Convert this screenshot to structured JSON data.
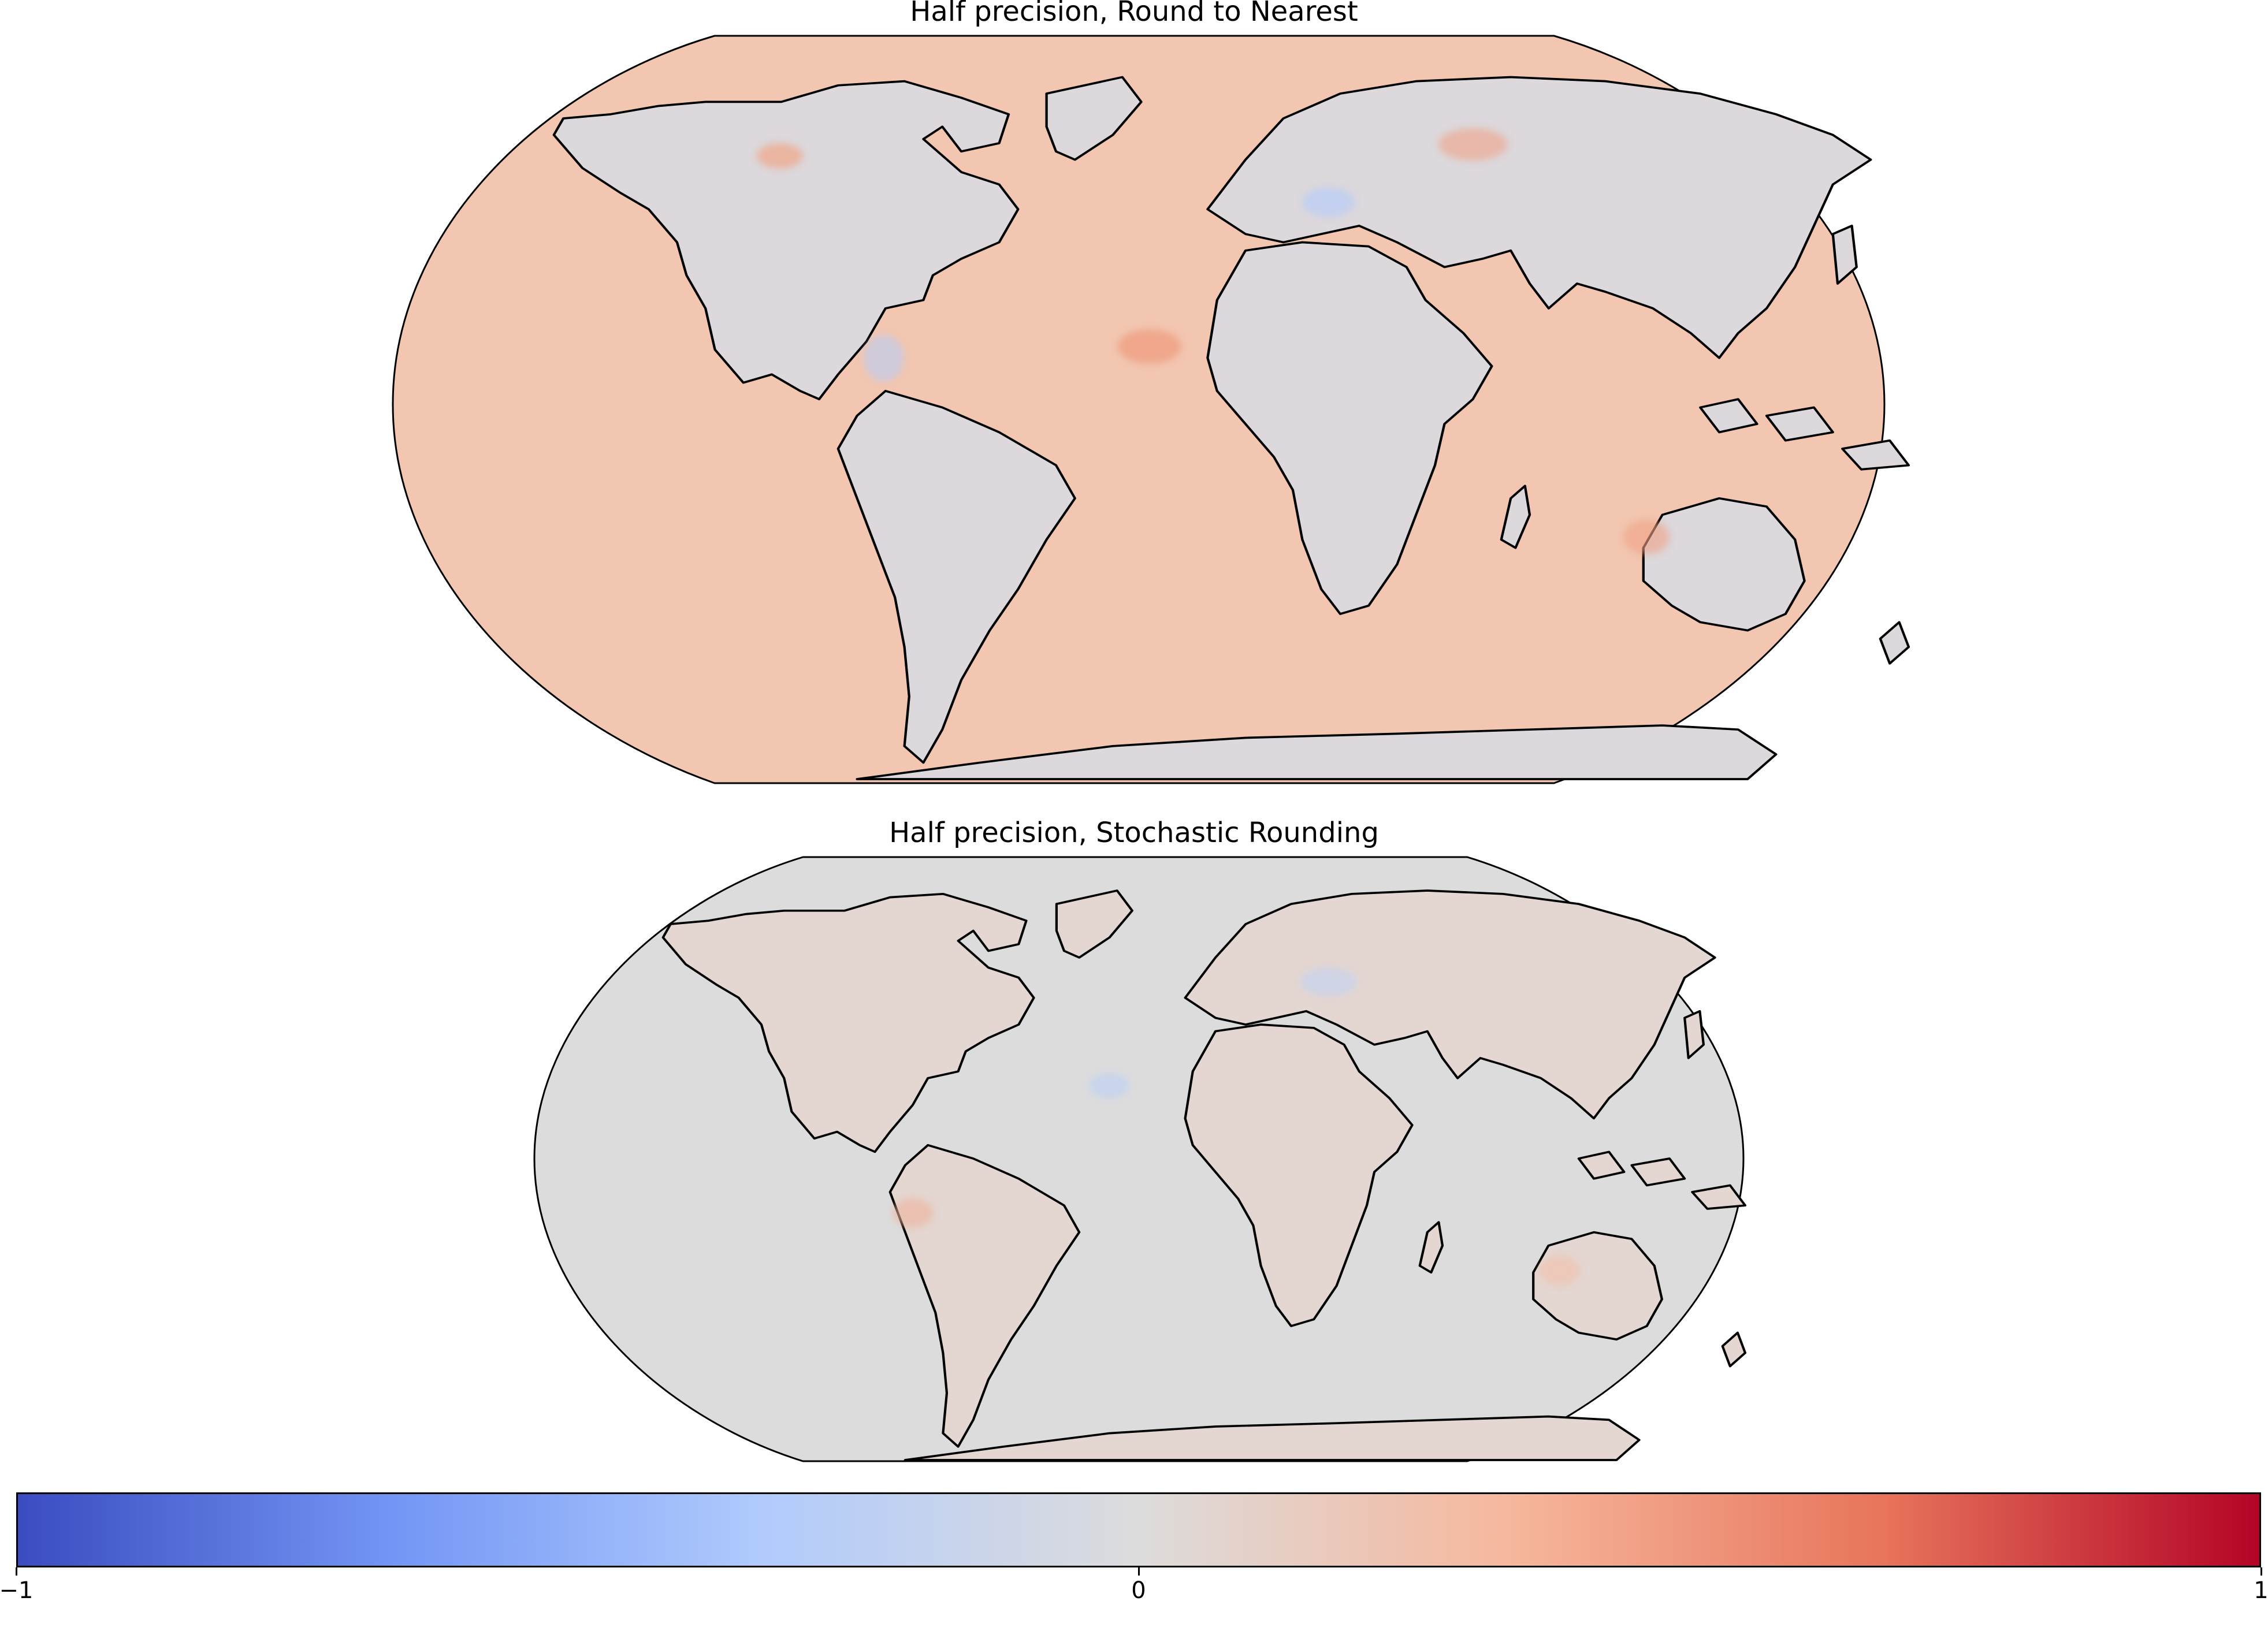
{
  "panels": [
    {
      "title": "Half precision, Round to Nearest",
      "projection": "robinson",
      "base_color": "#f2c6b0",
      "land_color": "#dcd8dc"
    },
    {
      "title": "Half precision, Stochastic Rounding",
      "projection": "robinson",
      "base_color": "#dcdcdc",
      "land_color": "#e4d6d0"
    }
  ],
  "colorbar": {
    "colormap": "coolwarm",
    "colors": [
      "#3b4cc0",
      "#7396f5",
      "#b1cbfc",
      "#dddcdc",
      "#f6b79c",
      "#e7745b",
      "#b40426"
    ],
    "range": [
      -1,
      1
    ],
    "ticks": [
      {
        "value": -1,
        "label": "−1"
      },
      {
        "value": 0,
        "label": "0"
      },
      {
        "value": 1,
        "label": "1"
      }
    ]
  }
}
